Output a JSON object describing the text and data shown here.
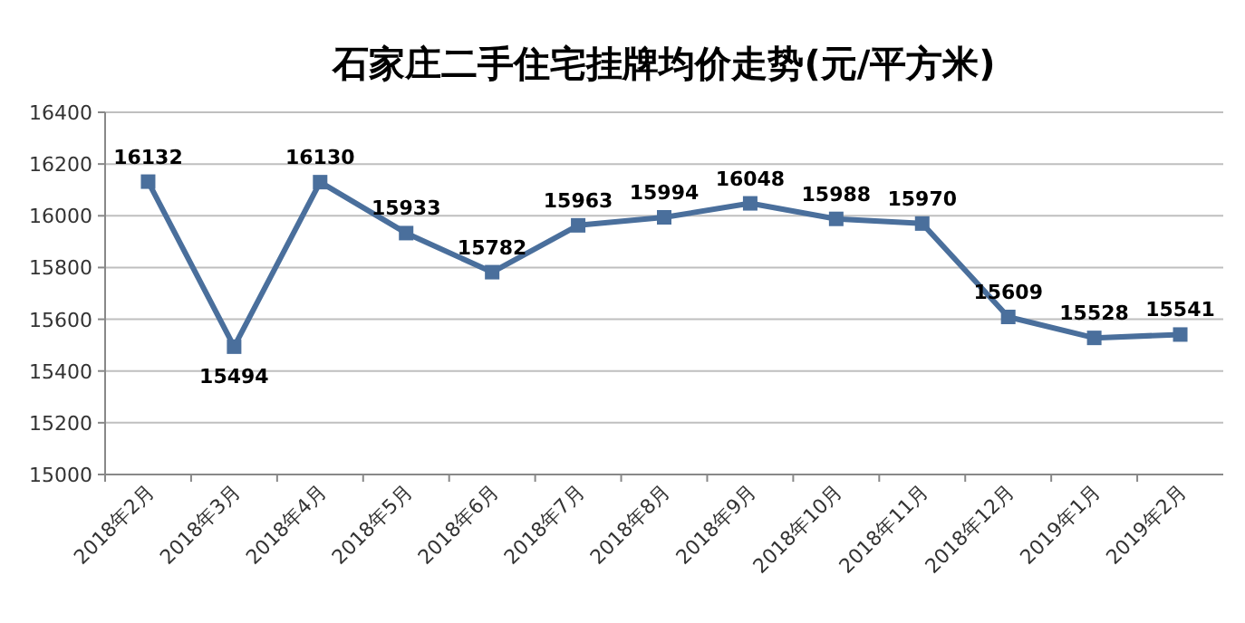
{
  "chart_data": {
    "type": "line",
    "title": "石家庄二手住宅挂牌均价走势(元/平方米)",
    "categories": [
      "2018年2月",
      "2018年3月",
      "2018年4月",
      "2018年5月",
      "2018年6月",
      "2018年7月",
      "2018年8月",
      "2018年9月",
      "2018年10月",
      "2018年11月",
      "2018年12月",
      "2019年1月",
      "2019年2月"
    ],
    "series": [
      {
        "color": "#4a6f9c",
        "values": [
          16132,
          15494,
          16130,
          15933,
          15782,
          15963,
          15994,
          16048,
          15988,
          15970,
          15609,
          15528,
          15541
        ]
      }
    ],
    "ylim": [
      15000,
      16400
    ],
    "yticks": [
      15000,
      15200,
      15400,
      15600,
      15800,
      16000,
      16200,
      16400
    ],
    "grid": "y",
    "marker": "square",
    "line_style": "solid",
    "data_labels": true
  }
}
